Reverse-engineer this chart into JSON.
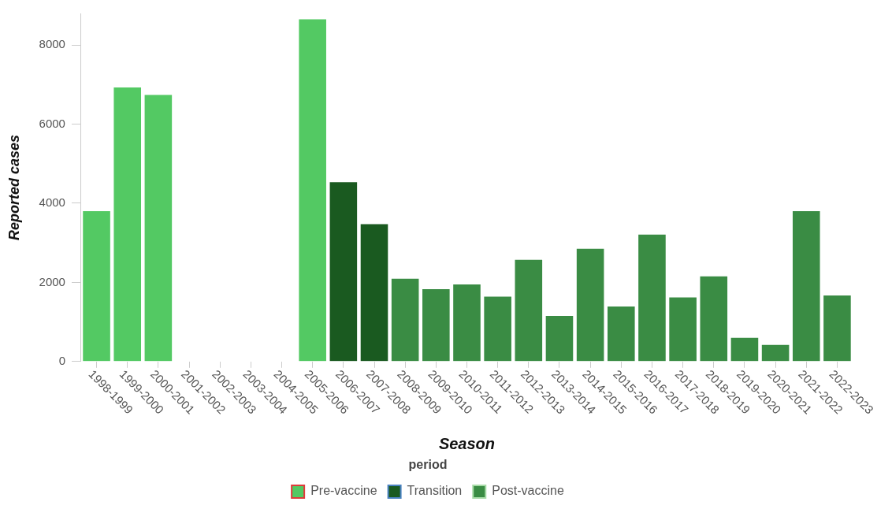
{
  "chart_data": {
    "type": "bar",
    "xlabel": "Season",
    "ylabel": "Reported cases",
    "legend_title": "period",
    "legend": "bottom",
    "grid": false,
    "categories": [
      "1998-1999",
      "1999-2000",
      "2000-2001",
      "2001-2002",
      "2002-2003",
      "2003-2004",
      "2004-2005",
      "2005-2006",
      "2006-2007",
      "2007-2008",
      "2008-2009",
      "2009-2010",
      "2010-2011",
      "2011-2012",
      "2012-2013",
      "2013-2014",
      "2014-2015",
      "2015-2016",
      "2016-2017",
      "2017-2018",
      "2018-2019",
      "2019-2020",
      "2020-2021",
      "2021-2022",
      "2022-2023"
    ],
    "ylim": [
      0,
      8800
    ],
    "yticks": [
      0,
      2000,
      4000,
      6000,
      8000
    ],
    "series": [
      {
        "name": "Pre-vaccine",
        "color": "#53c963",
        "values": [
          3800,
          6930,
          6740,
          0,
          0,
          0,
          0,
          8650,
          null,
          null,
          null,
          null,
          null,
          null,
          null,
          null,
          null,
          null,
          null,
          null,
          null,
          null,
          null,
          null,
          null
        ]
      },
      {
        "name": "Transition",
        "color": "#1a5a20",
        "values": [
          null,
          null,
          null,
          null,
          null,
          null,
          null,
          null,
          4530,
          3470,
          null,
          null,
          null,
          null,
          null,
          null,
          null,
          null,
          null,
          null,
          null,
          null,
          null,
          null,
          null
        ]
      },
      {
        "name": "Post-vaccine",
        "color": "#3a8c44",
        "values": [
          null,
          null,
          null,
          null,
          null,
          null,
          null,
          null,
          null,
          null,
          2090,
          1830,
          1950,
          1640,
          2570,
          1150,
          2850,
          1390,
          3210,
          1620,
          2150,
          600,
          420,
          3800,
          1670
        ]
      }
    ]
  }
}
